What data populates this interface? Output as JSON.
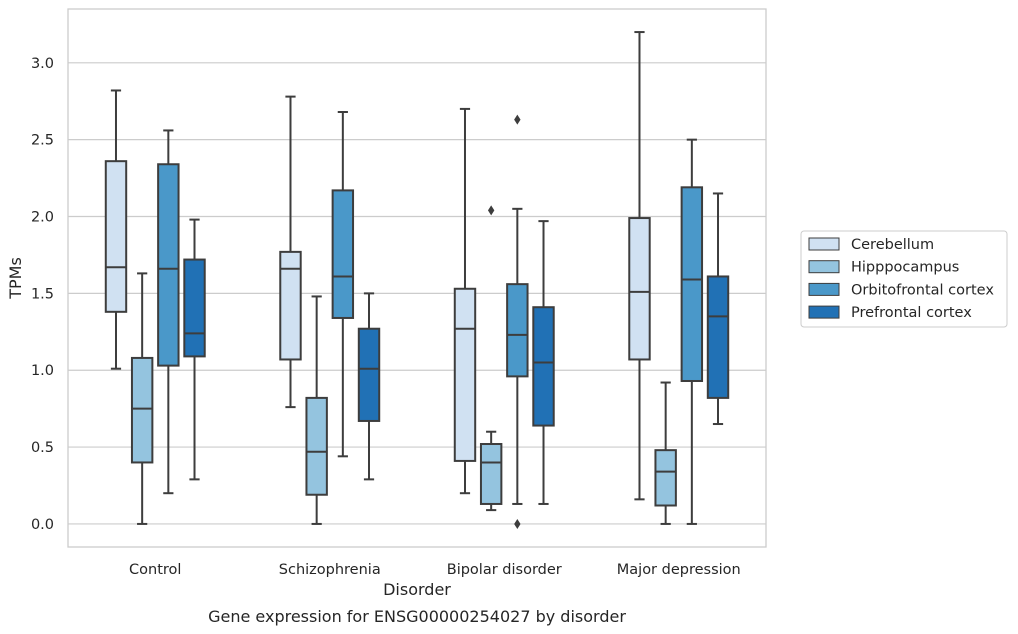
{
  "chart_data": {
    "type": "boxplot",
    "caption": "Gene expression for ENSG00000254027 by disorder",
    "xlabel": "Disorder",
    "ylabel": "TPMs",
    "ylim": [
      -0.15,
      3.35
    ],
    "yticks": [
      "0.0",
      "0.5",
      "1.0",
      "1.5",
      "2.0",
      "2.5",
      "3.0"
    ],
    "ytick_values": [
      0,
      0.5,
      1.0,
      1.5,
      2.0,
      2.5,
      3.0
    ],
    "grid": "horizontal",
    "legend_position": "right",
    "categories": [
      "Control",
      "Schizophrenia",
      "Bipolar disorder",
      "Major depression"
    ],
    "series": [
      {
        "name": "Cerebellum",
        "color": "#d0e1f2",
        "boxes": [
          {
            "whislo": 1.01,
            "q1": 1.38,
            "med": 1.67,
            "q3": 2.36,
            "whishi": 2.82,
            "fliers": []
          },
          {
            "whislo": 0.76,
            "q1": 1.07,
            "med": 1.66,
            "q3": 1.77,
            "whishi": 2.78,
            "fliers": []
          },
          {
            "whislo": 0.2,
            "q1": 0.41,
            "med": 1.27,
            "q3": 1.53,
            "whishi": 2.7,
            "fliers": []
          },
          {
            "whislo": 0.16,
            "q1": 1.07,
            "med": 1.51,
            "q3": 1.99,
            "whishi": 3.2,
            "fliers": []
          }
        ]
      },
      {
        "name": "Hipppocampus",
        "color": "#94c4df",
        "boxes": [
          {
            "whislo": 0.0,
            "q1": 0.4,
            "med": 0.75,
            "q3": 1.08,
            "whishi": 1.63,
            "fliers": []
          },
          {
            "whislo": 0.0,
            "q1": 0.19,
            "med": 0.47,
            "q3": 0.82,
            "whishi": 1.48,
            "fliers": []
          },
          {
            "whislo": 0.09,
            "q1": 0.13,
            "med": 0.4,
            "q3": 0.52,
            "whishi": 0.6,
            "fliers": [
              2.04
            ]
          },
          {
            "whislo": 0.0,
            "q1": 0.12,
            "med": 0.34,
            "q3": 0.48,
            "whishi": 0.92,
            "fliers": []
          }
        ]
      },
      {
        "name": "Orbitofrontal cortex",
        "color": "#4a98c9",
        "boxes": [
          {
            "whislo": 0.2,
            "q1": 1.03,
            "med": 1.66,
            "q3": 2.34,
            "whishi": 2.56,
            "fliers": []
          },
          {
            "whislo": 0.44,
            "q1": 1.34,
            "med": 1.61,
            "q3": 2.17,
            "whishi": 2.68,
            "fliers": []
          },
          {
            "whislo": 0.13,
            "q1": 0.96,
            "med": 1.23,
            "q3": 1.56,
            "whishi": 2.05,
            "fliers": [
              2.63,
              0.0
            ]
          },
          {
            "whislo": 0.0,
            "q1": 0.93,
            "med": 1.59,
            "q3": 2.19,
            "whishi": 2.5,
            "fliers": []
          }
        ]
      },
      {
        "name": "Prefrontal cortex",
        "color": "#2171b5",
        "boxes": [
          {
            "whislo": 0.29,
            "q1": 1.09,
            "med": 1.24,
            "q3": 1.72,
            "whishi": 1.98,
            "fliers": []
          },
          {
            "whislo": 0.29,
            "q1": 0.67,
            "med": 1.01,
            "q3": 1.27,
            "whishi": 1.5,
            "fliers": []
          },
          {
            "whislo": 0.13,
            "q1": 0.64,
            "med": 1.05,
            "q3": 1.41,
            "whishi": 1.97,
            "fliers": []
          },
          {
            "whislo": 0.65,
            "q1": 0.82,
            "med": 1.35,
            "q3": 1.61,
            "whishi": 2.15,
            "fliers": []
          }
        ]
      }
    ]
  }
}
